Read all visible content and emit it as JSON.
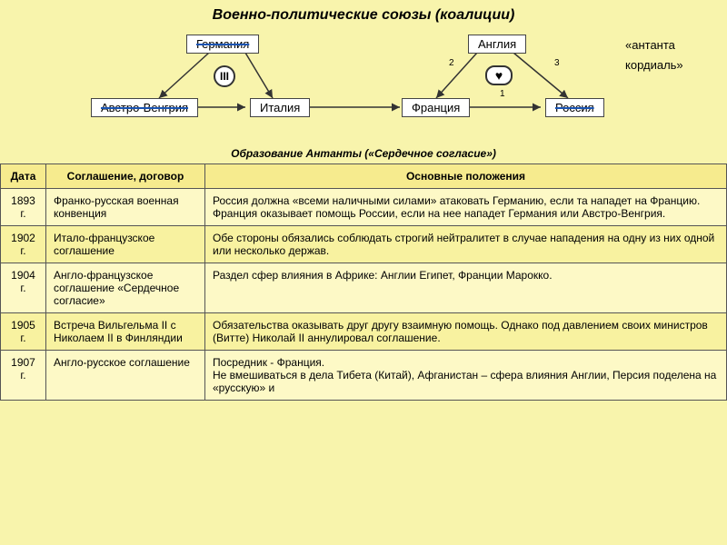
{
  "title": "Военно-политические союзы (коалиции)",
  "caption": "Образование Антанты («Сердечное согласие»)",
  "annot1": "«антанта",
  "annot2": "кордиаль»",
  "roman": "III",
  "heart": "♥",
  "nodes": {
    "germany": "Германия",
    "austria": "Австро-Венгрия",
    "italy": "Италия",
    "england": "Англия",
    "france": "Франция",
    "russia": "Россия"
  },
  "nums": {
    "n1": "1",
    "n2": "2",
    "n3": "3"
  },
  "headers": {
    "date": "Дата",
    "agreement": "Соглашение, договор",
    "provisions": "Основные положения"
  },
  "rows": [
    {
      "date": "1893 г.",
      "agr": "Франко-русская военная конвенция",
      "prov": "Россия должна «всеми наличными силами» атаковать Германию, если та нападет на Францию. Франция оказывает помощь России, если на нее нападет Германия или Австро-Венгрия."
    },
    {
      "date": "1902 г.",
      "agr": "Итало-французское соглашение",
      "prov": "Обе стороны обязались соблюдать строгий нейтралитет в случае нападения на одну из них одной или несколько держав."
    },
    {
      "date": "1904 г.",
      "agr": "Англо-французское соглашение «Сердечное согласие»",
      "prov": "Раздел сфер влияния в Африке: Англии Египет, Франции Марокко."
    },
    {
      "date": "1905 г.",
      "agr": "Встреча Вильгельма II с Николаем II в Финляндии",
      "prov": "Обязательства оказывать друг другу взаимную помощь. Однако под давлением своих министров (Витте) Николай II аннулировал соглашение."
    },
    {
      "date": "1907 г.",
      "agr": "Англо-русское соглашение",
      "prov": "Посредник - Франция.\nНе вмешиваться в дела Тибета (Китай), Афганистан – сфера влияния Англии, Персия поделена на «русскую» и"
    }
  ],
  "colors": {
    "bg": "#f8f4ac",
    "nodeBorder": "#444",
    "arrow": "#333"
  }
}
